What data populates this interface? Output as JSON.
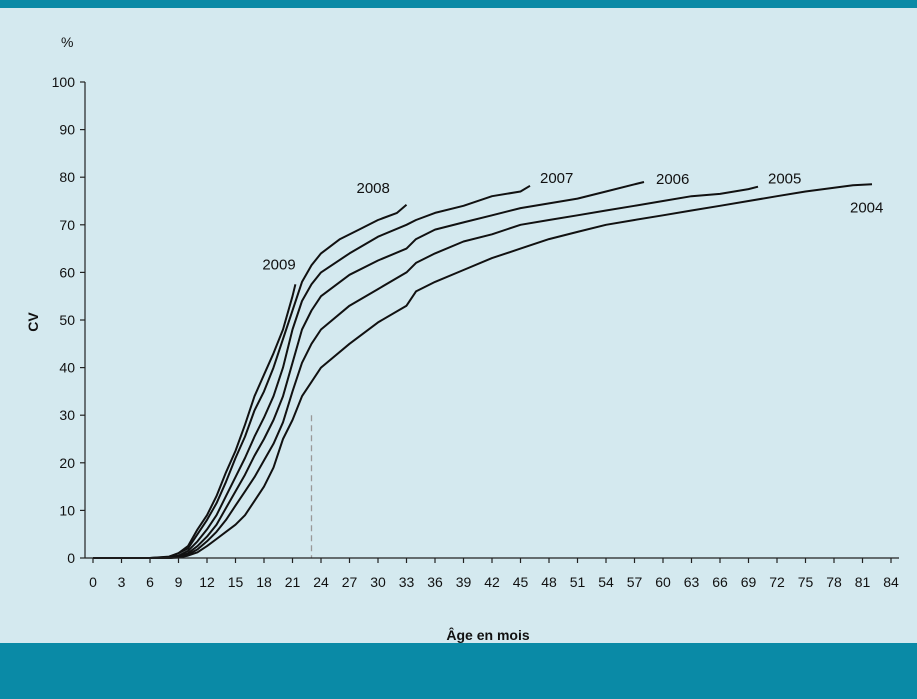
{
  "chart_data": {
    "type": "line",
    "ylabel": "CV",
    "xlabel": "Âge en mois",
    "unit_label": "%",
    "xlim": [
      0,
      84
    ],
    "ylim": [
      0,
      100
    ],
    "x_ticks": [
      0,
      3,
      6,
      9,
      12,
      15,
      18,
      21,
      24,
      27,
      30,
      33,
      36,
      39,
      42,
      45,
      48,
      51,
      54,
      57,
      60,
      63,
      66,
      69,
      72,
      75,
      78,
      81,
      84
    ],
    "y_ticks": [
      0,
      10,
      20,
      30,
      40,
      50,
      60,
      70,
      80,
      90,
      100
    ],
    "guide_line": {
      "x": 23,
      "y": 30,
      "style": "dashed"
    },
    "series": [
      {
        "name": "2009",
        "points": [
          [
            0,
            0
          ],
          [
            3,
            0
          ],
          [
            6,
            0
          ],
          [
            8,
            0.3
          ],
          [
            9,
            1
          ],
          [
            10,
            2.5
          ],
          [
            11,
            6
          ],
          [
            12,
            9
          ],
          [
            13,
            13
          ],
          [
            14,
            18
          ],
          [
            15,
            22.5
          ],
          [
            16,
            28
          ],
          [
            17,
            34
          ],
          [
            18,
            38.5
          ],
          [
            19,
            43
          ],
          [
            20,
            48
          ],
          [
            21,
            55
          ],
          [
            21.3,
            57.5
          ]
        ]
      },
      {
        "name": "2008",
        "points": [
          [
            0,
            0
          ],
          [
            3,
            0
          ],
          [
            6,
            0
          ],
          [
            8,
            0.2
          ],
          [
            9,
            1
          ],
          [
            10,
            2
          ],
          [
            11,
            5
          ],
          [
            12,
            8
          ],
          [
            13,
            11.5
          ],
          [
            14,
            16
          ],
          [
            15,
            21
          ],
          [
            16,
            25.5
          ],
          [
            17,
            31
          ],
          [
            18,
            35
          ],
          [
            19,
            40
          ],
          [
            20,
            46
          ],
          [
            21,
            52
          ],
          [
            22,
            58
          ],
          [
            23,
            61.5
          ],
          [
            24,
            64
          ],
          [
            26,
            67
          ],
          [
            28,
            69
          ],
          [
            30,
            71
          ],
          [
            32,
            72.5
          ],
          [
            33,
            74.2
          ]
        ]
      },
      {
        "name": "2007",
        "points": [
          [
            0,
            0
          ],
          [
            3,
            0
          ],
          [
            6,
            0
          ],
          [
            8,
            0.1
          ],
          [
            9,
            0.5
          ],
          [
            10,
            1.5
          ],
          [
            11,
            3.5
          ],
          [
            12,
            6
          ],
          [
            13,
            9
          ],
          [
            14,
            13
          ],
          [
            15,
            17
          ],
          [
            16,
            21
          ],
          [
            17,
            25.5
          ],
          [
            18,
            29.5
          ],
          [
            19,
            34
          ],
          [
            20,
            40
          ],
          [
            21,
            48
          ],
          [
            22,
            54
          ],
          [
            23,
            57.5
          ],
          [
            24,
            60
          ],
          [
            27,
            64
          ],
          [
            30,
            67.5
          ],
          [
            33,
            70
          ],
          [
            34,
            71
          ],
          [
            36,
            72.5
          ],
          [
            39,
            74
          ],
          [
            42,
            76
          ],
          [
            45,
            77
          ],
          [
            46,
            78.2
          ]
        ]
      },
      {
        "name": "2006",
        "points": [
          [
            0,
            0
          ],
          [
            3,
            0
          ],
          [
            6,
            0
          ],
          [
            8,
            0
          ],
          [
            9,
            0.3
          ],
          [
            10,
            1
          ],
          [
            11,
            2.5
          ],
          [
            12,
            4.5
          ],
          [
            13,
            7
          ],
          [
            14,
            10.5
          ],
          [
            15,
            14
          ],
          [
            16,
            17.5
          ],
          [
            17,
            21.5
          ],
          [
            18,
            25
          ],
          [
            19,
            29
          ],
          [
            20,
            34
          ],
          [
            21,
            41
          ],
          [
            22,
            48
          ],
          [
            23,
            52
          ],
          [
            24,
            55
          ],
          [
            27,
            59.5
          ],
          [
            30,
            62.5
          ],
          [
            33,
            65
          ],
          [
            34,
            67
          ],
          [
            36,
            69
          ],
          [
            39,
            70.5
          ],
          [
            42,
            72
          ],
          [
            45,
            73.5
          ],
          [
            48,
            74.5
          ],
          [
            51,
            75.5
          ],
          [
            54,
            77
          ],
          [
            57,
            78.5
          ],
          [
            58,
            79
          ]
        ]
      },
      {
        "name": "2005",
        "points": [
          [
            0,
            0
          ],
          [
            3,
            0
          ],
          [
            6,
            0
          ],
          [
            8,
            0
          ],
          [
            9,
            0.2
          ],
          [
            10,
            0.7
          ],
          [
            11,
            1.8
          ],
          [
            12,
            3.5
          ],
          [
            13,
            5.5
          ],
          [
            14,
            8
          ],
          [
            15,
            11
          ],
          [
            16,
            14
          ],
          [
            17,
            17
          ],
          [
            18,
            20.5
          ],
          [
            19,
            24
          ],
          [
            20,
            28.5
          ],
          [
            21,
            35
          ],
          [
            22,
            41
          ],
          [
            23,
            45
          ],
          [
            24,
            48
          ],
          [
            27,
            53
          ],
          [
            30,
            56.5
          ],
          [
            33,
            60
          ],
          [
            34,
            62
          ],
          [
            36,
            64
          ],
          [
            39,
            66.5
          ],
          [
            42,
            68
          ],
          [
            45,
            70
          ],
          [
            48,
            71
          ],
          [
            51,
            72
          ],
          [
            54,
            73
          ],
          [
            57,
            74
          ],
          [
            60,
            75
          ],
          [
            63,
            76
          ],
          [
            66,
            76.5
          ],
          [
            69,
            77.5
          ],
          [
            70,
            78
          ]
        ]
      },
      {
        "name": "2004",
        "points": [
          [
            0,
            0
          ],
          [
            3,
            0
          ],
          [
            6,
            0
          ],
          [
            8,
            0
          ],
          [
            9,
            0.1
          ],
          [
            10,
            0.5
          ],
          [
            11,
            1.2
          ],
          [
            12,
            2.5
          ],
          [
            13,
            4
          ],
          [
            14,
            5.5
          ],
          [
            15,
            7
          ],
          [
            16,
            9
          ],
          [
            17,
            12
          ],
          [
            18,
            15
          ],
          [
            19,
            19
          ],
          [
            20,
            25
          ],
          [
            21,
            29
          ],
          [
            22,
            34
          ],
          [
            23,
            37
          ],
          [
            24,
            40
          ],
          [
            27,
            45
          ],
          [
            30,
            49.5
          ],
          [
            33,
            53
          ],
          [
            34,
            56
          ],
          [
            36,
            58
          ],
          [
            39,
            60.5
          ],
          [
            42,
            63
          ],
          [
            45,
            65
          ],
          [
            48,
            67
          ],
          [
            51,
            68.5
          ],
          [
            54,
            70
          ],
          [
            57,
            71
          ],
          [
            60,
            72
          ],
          [
            63,
            73
          ],
          [
            66,
            74
          ],
          [
            69,
            75
          ],
          [
            72,
            76
          ],
          [
            75,
            77
          ],
          [
            78,
            77.8
          ],
          [
            80,
            78.3
          ],
          [
            82,
            78.5
          ]
        ]
      }
    ]
  }
}
